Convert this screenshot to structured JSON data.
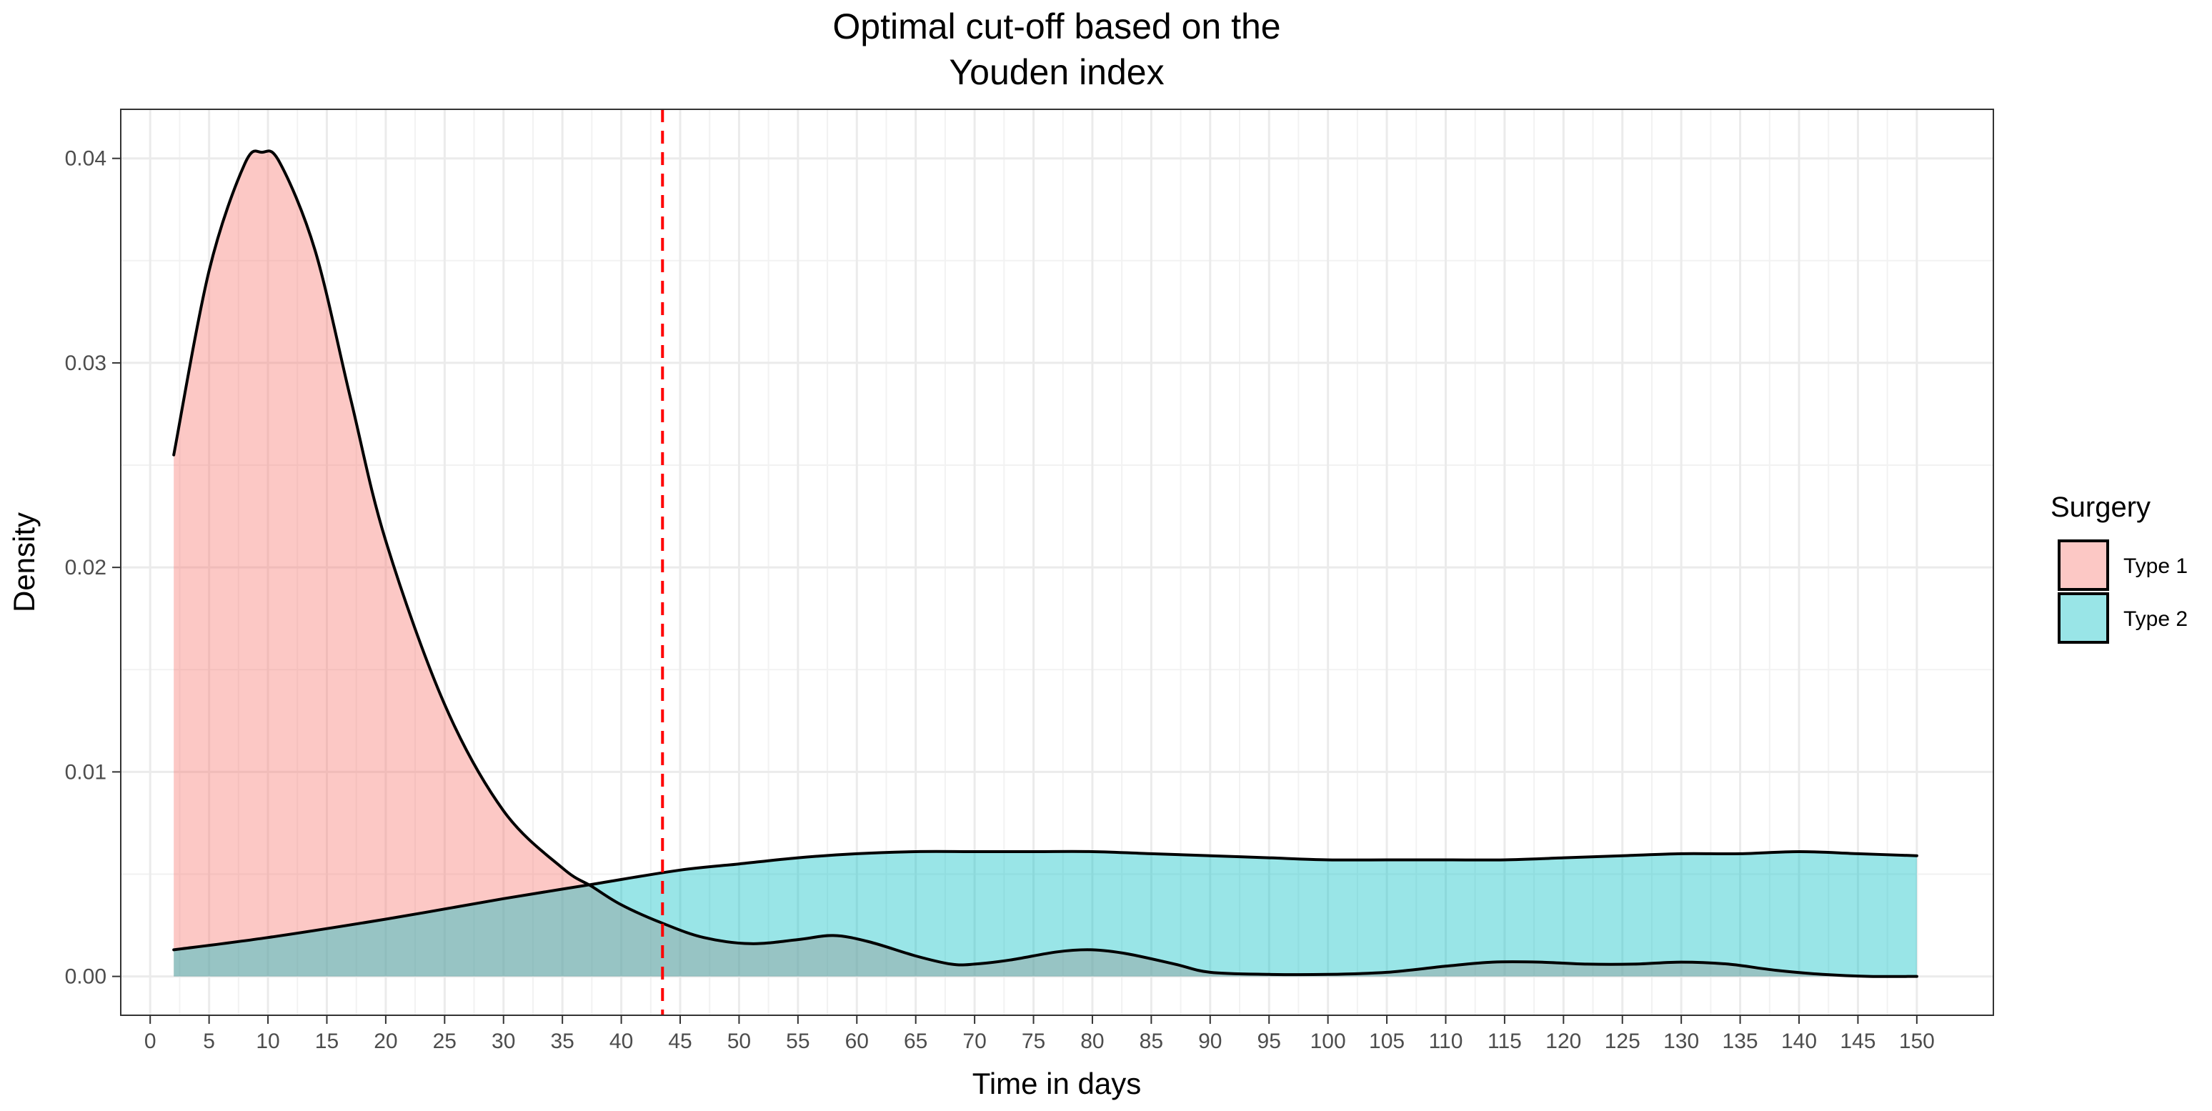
{
  "chart_data": {
    "type": "area",
    "title_lines": [
      "Optimal cut-off based on the",
      "Youden index"
    ],
    "xlabel": "Time in days",
    "ylabel": "Density",
    "xlim": [
      -2.5,
      156.5
    ],
    "ylim": [
      -0.0019,
      0.0424
    ],
    "x_ticks": [
      0,
      5,
      10,
      15,
      20,
      25,
      30,
      35,
      40,
      45,
      50,
      55,
      60,
      65,
      70,
      75,
      80,
      85,
      90,
      95,
      100,
      105,
      110,
      115,
      120,
      125,
      130,
      135,
      140,
      145,
      150
    ],
    "y_ticks": [
      0.0,
      0.01,
      0.02,
      0.03,
      0.04
    ],
    "y_tick_labels": [
      "0.00",
      "0.01",
      "0.02",
      "0.03",
      "0.04"
    ],
    "grid": true,
    "cutoff": {
      "x": 43.5,
      "style": "dashed",
      "color": "#ff0000"
    },
    "legend": {
      "title": "Surgery",
      "position": "right"
    },
    "series": [
      {
        "name": "Type 1",
        "fill": "#f8766d",
        "x": [
          2,
          5,
          8,
          9.5,
          11,
          14,
          17,
          20,
          25,
          30,
          35,
          37.5,
          40,
          43.5,
          47,
          51,
          55,
          58,
          61,
          65,
          68,
          70,
          73,
          77,
          80,
          83,
          87,
          90,
          95,
          100,
          105,
          110,
          114,
          118,
          122,
          126,
          130,
          134,
          138,
          142,
          146,
          150
        ],
        "values": [
          0.0255,
          0.0345,
          0.0397,
          0.0403,
          0.0398,
          0.0355,
          0.0283,
          0.0213,
          0.0133,
          0.0081,
          0.0053,
          0.0044,
          0.0035,
          0.0026,
          0.0019,
          0.0016,
          0.0018,
          0.002,
          0.0017,
          0.001,
          0.0006,
          0.0006,
          0.0008,
          0.0012,
          0.0013,
          0.0011,
          0.0006,
          0.0002,
          0.0001,
          0.0001,
          0.0002,
          0.0005,
          0.0007,
          0.0007,
          0.0006,
          0.0006,
          0.0007,
          0.0006,
          0.0003,
          0.0001,
          0.0,
          0.0
        ]
      },
      {
        "name": "Type 2",
        "fill": "#00bfc4",
        "x": [
          2,
          10,
          20,
          30,
          37.5,
          45,
          50,
          55,
          60,
          65,
          70,
          75,
          80,
          85,
          90,
          95,
          100,
          105,
          110,
          115,
          120,
          125,
          130,
          135,
          140,
          145,
          150
        ],
        "values": [
          0.0013,
          0.0019,
          0.0028,
          0.0038,
          0.0045,
          0.0052,
          0.0055,
          0.0058,
          0.006,
          0.0061,
          0.0061,
          0.0061,
          0.0061,
          0.006,
          0.0059,
          0.0058,
          0.0057,
          0.0057,
          0.0057,
          0.0057,
          0.0058,
          0.0059,
          0.006,
          0.006,
          0.0061,
          0.006,
          0.0059
        ]
      }
    ]
  }
}
